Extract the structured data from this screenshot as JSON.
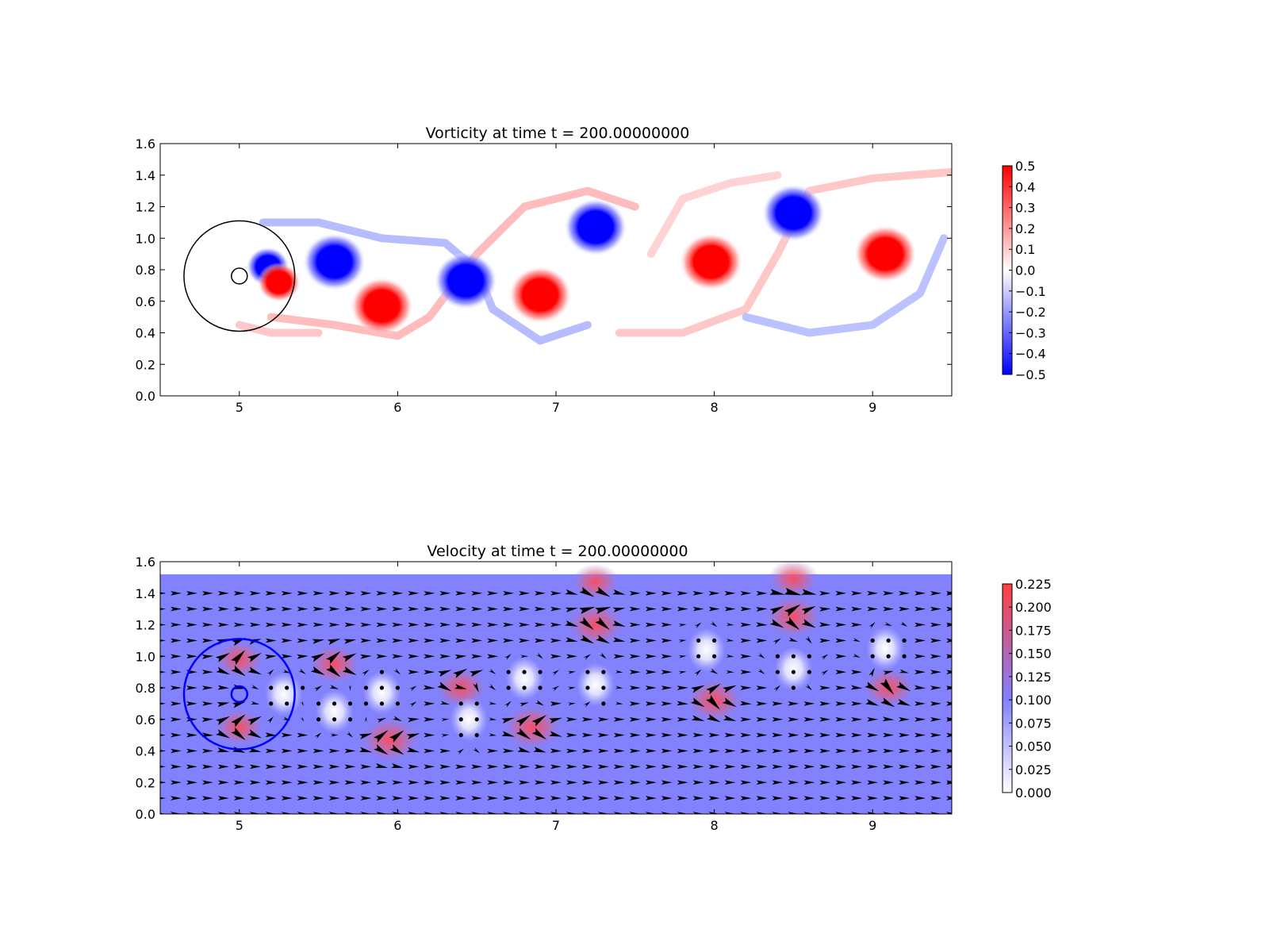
{
  "chart_data": [
    {
      "type": "heatmap",
      "title": "Vorticity at time t =   200.00000000",
      "xlabel": "",
      "ylabel": "",
      "xlim": [
        4.5,
        9.5
      ],
      "ylim": [
        0.0,
        1.6
      ],
      "xticks": [
        "5",
        "6",
        "7",
        "8",
        "9"
      ],
      "xtick_values": [
        5,
        6,
        7,
        8,
        9
      ],
      "yticks": [
        "0.0",
        "0.2",
        "0.4",
        "0.6",
        "0.8",
        "1.0",
        "1.2",
        "1.4",
        "1.6"
      ],
      "ytick_values": [
        0.0,
        0.2,
        0.4,
        0.6,
        0.8,
        1.0,
        1.2,
        1.4,
        1.6
      ],
      "colormap": "bwr",
      "colors": {
        "low": "#0000ff",
        "mid": "#ffffff",
        "high": "#ff0000"
      },
      "colorbar": {
        "range": [
          -0.5,
          0.5
        ],
        "ticks": [
          "0.5",
          "0.4",
          "0.3",
          "0.2",
          "0.1",
          "0.0",
          "−0.1",
          "−0.2",
          "−0.3",
          "−0.4",
          "−0.5"
        ],
        "tick_values": [
          0.5,
          0.4,
          0.3,
          0.2,
          0.1,
          0.0,
          -0.1,
          -0.2,
          -0.3,
          -0.4,
          -0.5
        ]
      },
      "circles": [
        {
          "cx": 5.0,
          "cy": 0.76,
          "r": 0.35,
          "color": "#000000"
        },
        {
          "cx": 5.0,
          "cy": 0.76,
          "r": 0.05,
          "color": "#000000"
        }
      ],
      "vortices": [
        {
          "x": 5.18,
          "y": 0.82,
          "strength": -0.5
        },
        {
          "x": 5.25,
          "y": 0.72,
          "strength": 0.5
        },
        {
          "x": 5.6,
          "y": 0.85,
          "strength": -0.5
        },
        {
          "x": 5.9,
          "y": 0.57,
          "strength": 0.5
        },
        {
          "x": 6.43,
          "y": 0.73,
          "strength": -0.5
        },
        {
          "x": 6.9,
          "y": 0.64,
          "strength": 0.5
        },
        {
          "x": 7.25,
          "y": 1.07,
          "strength": -0.5
        },
        {
          "x": 7.98,
          "y": 0.85,
          "strength": 0.5
        },
        {
          "x": 8.5,
          "y": 1.16,
          "strength": -0.5
        },
        {
          "x": 9.08,
          "y": 0.9,
          "strength": 0.5
        }
      ]
    },
    {
      "type": "heatmap",
      "title": "Velocity at time t =   200.00000000",
      "xlabel": "",
      "ylabel": "",
      "xlim": [
        4.5,
        9.5
      ],
      "ylim": [
        0.0,
        1.6
      ],
      "xticks": [
        "5",
        "6",
        "7",
        "8",
        "9"
      ],
      "xtick_values": [
        5,
        6,
        7,
        8,
        9
      ],
      "yticks": [
        "0.0",
        "0.2",
        "0.4",
        "0.6",
        "0.8",
        "1.0",
        "1.2",
        "1.4",
        "1.6"
      ],
      "ytick_values": [
        0.0,
        0.2,
        0.4,
        0.6,
        0.8,
        1.0,
        1.2,
        1.4,
        1.6
      ],
      "field_top": 1.52,
      "background_speed": 0.1,
      "colors": {
        "low": "#ffffff",
        "mid": "#8080ff",
        "high": "#ff4040",
        "arrow": "#000000"
      },
      "colorbar": {
        "range": [
          0.0,
          0.225
        ],
        "ticks": [
          "0.225",
          "0.200",
          "0.175",
          "0.150",
          "0.125",
          "0.100",
          "0.075",
          "0.050",
          "0.025",
          "0.000"
        ],
        "tick_values": [
          0.225,
          0.2,
          0.175,
          0.15,
          0.125,
          0.1,
          0.075,
          0.05,
          0.025,
          0.0
        ]
      },
      "circles": [
        {
          "cx": 5.0,
          "cy": 0.76,
          "r": 0.35,
          "color": "#0000ff"
        },
        {
          "cx": 5.0,
          "cy": 0.76,
          "r": 0.05,
          "color": "#0000ff"
        }
      ],
      "hot_spots": [
        {
          "x": 5.0,
          "y": 0.98,
          "speed": 0.19
        },
        {
          "x": 5.0,
          "y": 0.55,
          "speed": 0.19
        },
        {
          "x": 5.6,
          "y": 0.95,
          "speed": 0.2
        },
        {
          "x": 5.95,
          "y": 0.47,
          "speed": 0.23
        },
        {
          "x": 6.4,
          "y": 0.8,
          "speed": 0.2
        },
        {
          "x": 6.85,
          "y": 0.55,
          "speed": 0.23
        },
        {
          "x": 7.25,
          "y": 1.2,
          "speed": 0.22
        },
        {
          "x": 7.25,
          "y": 1.47,
          "speed": 0.18
        },
        {
          "x": 8.0,
          "y": 0.72,
          "speed": 0.22
        },
        {
          "x": 8.5,
          "y": 1.25,
          "speed": 0.22
        },
        {
          "x": 8.5,
          "y": 1.49,
          "speed": 0.19
        },
        {
          "x": 9.1,
          "y": 0.8,
          "speed": 0.2
        }
      ],
      "calm_spots": [
        {
          "x": 5.28,
          "y": 0.76
        },
        {
          "x": 5.6,
          "y": 0.65
        },
        {
          "x": 5.9,
          "y": 0.77
        },
        {
          "x": 6.45,
          "y": 0.6
        },
        {
          "x": 6.8,
          "y": 0.86
        },
        {
          "x": 7.25,
          "y": 0.82
        },
        {
          "x": 7.95,
          "y": 1.04
        },
        {
          "x": 8.5,
          "y": 0.92
        },
        {
          "x": 9.08,
          "y": 1.05
        }
      ]
    }
  ]
}
